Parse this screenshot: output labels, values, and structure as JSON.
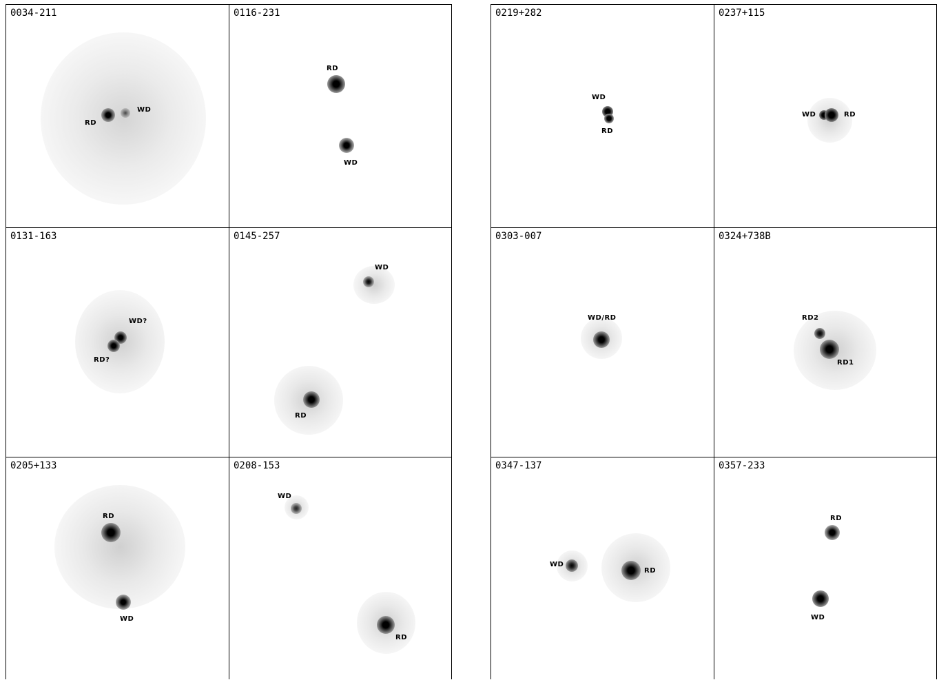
{
  "panels_left": [
    {
      "title": "0034-211",
      "labels": [
        "RD",
        "WD"
      ]
    },
    {
      "title": "0116-231",
      "labels": [
        "RD",
        "WD"
      ]
    },
    {
      "title": "0131-163",
      "labels": [
        "WD?",
        "RD?"
      ]
    },
    {
      "title": "0145-257",
      "labels": [
        "WD",
        "RD"
      ]
    },
    {
      "title": "0205+133",
      "labels": [
        "RD",
        "WD"
      ]
    },
    {
      "title": "0208-153",
      "labels": [
        "WD",
        "RD"
      ]
    }
  ],
  "panels_right": [
    {
      "title": "0219+282",
      "labels": [
        "WD",
        "RD"
      ]
    },
    {
      "title": "0237+115",
      "labels": [
        "WD",
        "RD"
      ]
    },
    {
      "title": "0303-007",
      "labels": [
        "WD/RD"
      ]
    },
    {
      "title": "0324+738B",
      "labels": [
        "RD2",
        "RD1"
      ]
    },
    {
      "title": "0347-137",
      "labels": [
        "WD",
        "RD"
      ]
    },
    {
      "title": "0357-233",
      "labels": [
        "RD",
        "WD"
      ]
    }
  ]
}
